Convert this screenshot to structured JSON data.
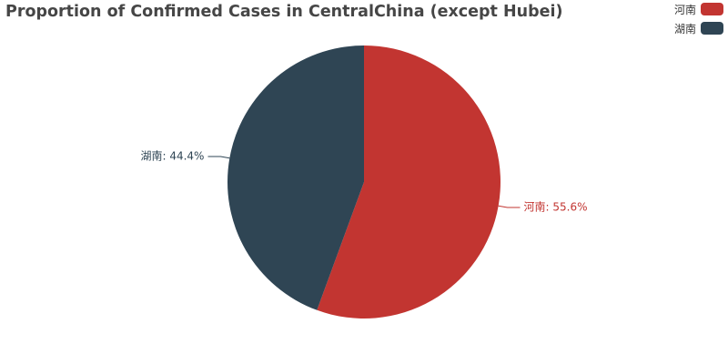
{
  "chart_data": {
    "type": "pie",
    "title": "Proportion of Confirmed Cases in CentralChina (except Hubei)",
    "slices": [
      {
        "name": "河南",
        "percent": 55.6,
        "label": "河南: 55.6%",
        "color": "#c23531"
      },
      {
        "name": "湖南",
        "percent": 44.4,
        "label": "湖南: 44.4%",
        "color": "#2f4554"
      }
    ],
    "legend_position": "top-right"
  },
  "legend": {
    "items": [
      {
        "label": "河南",
        "color": "#c23531"
      },
      {
        "label": "湖南",
        "color": "#2f4554"
      }
    ]
  }
}
